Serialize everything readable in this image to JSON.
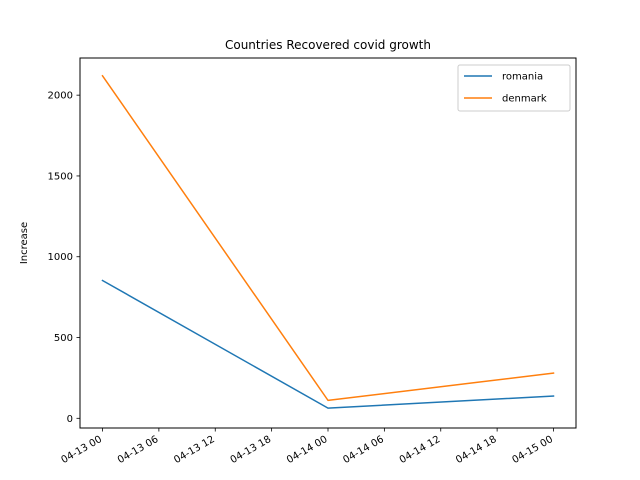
{
  "chart_data": {
    "type": "line",
    "title": "Countries Recovered covid growth",
    "xlabel": "",
    "ylabel": "Increase",
    "x": [
      "2020-04-13",
      "2020-04-14",
      "2020-04-15"
    ],
    "xlim": [
      "04-13 00",
      "04-15 00"
    ],
    "xticks": [
      "04-13 00",
      "04-13 06",
      "04-13 12",
      "04-13 18",
      "04-14 00",
      "04-14 06",
      "04-14 12",
      "04-14 18",
      "04-15 00"
    ],
    "yticks": [
      0,
      500,
      1000,
      1500,
      2000
    ],
    "ylim": [
      -60,
      2230
    ],
    "grid": false,
    "legend_position": "top-right",
    "series": [
      {
        "name": "romania",
        "color": "#1f77b4",
        "values": [
          853,
          63,
          138
        ]
      },
      {
        "name": "denmark",
        "color": "#ff7f0e",
        "values": [
          2120,
          111,
          280
        ]
      }
    ]
  }
}
